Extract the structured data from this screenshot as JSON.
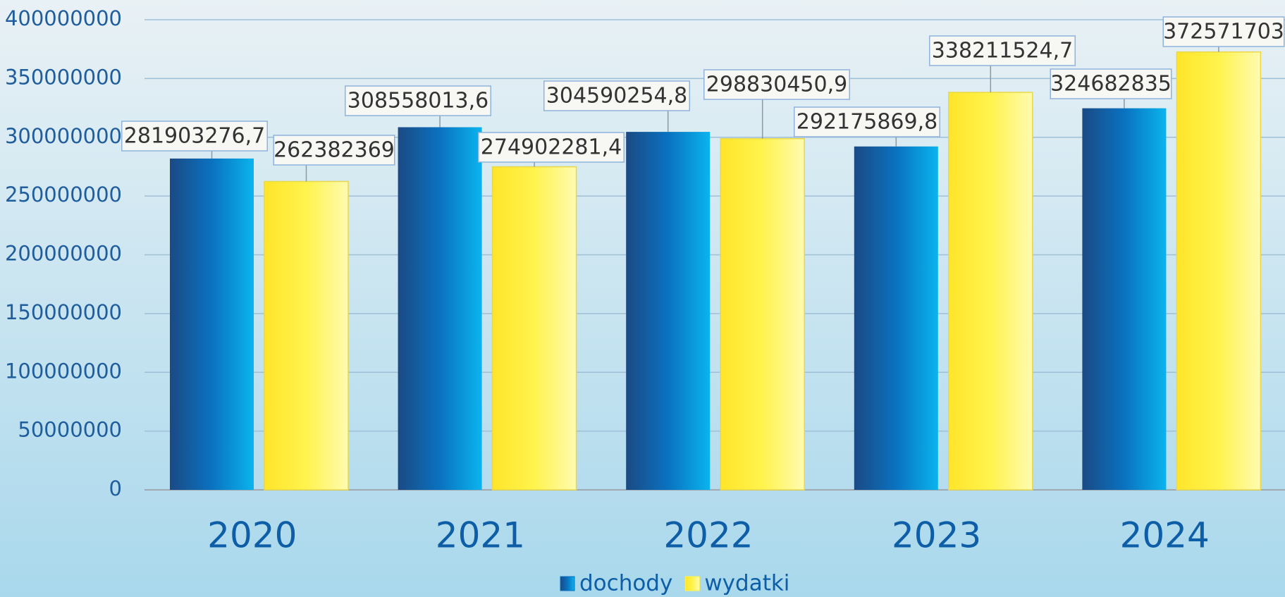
{
  "chart_data": {
    "type": "bar",
    "categories": [
      "2020",
      "2021",
      "2022",
      "2023",
      "2024"
    ],
    "series": [
      {
        "name": "dochody",
        "color": "#0a72c0",
        "values": [
          281903276.7,
          308558013.6,
          304590254.8,
          292175869.8,
          324682835
        ],
        "value_labels": [
          "281903276,7",
          "308558013,6",
          "304590254,8",
          "292175869,8",
          "324682835"
        ]
      },
      {
        "name": "wydatki",
        "color": "#fff34d",
        "values": [
          262382369,
          274902281.4,
          298830450.9,
          338211524.7,
          372571703
        ],
        "value_labels": [
          "262382369",
          "274902281,4",
          "298830450,9",
          "338211524,7",
          "372571703"
        ]
      }
    ],
    "ylim": [
      0,
      400000000
    ],
    "yticks": [
      0,
      50000000,
      100000000,
      150000000,
      200000000,
      250000000,
      300000000,
      350000000,
      400000000
    ],
    "grid": true,
    "legend": "bottom"
  }
}
